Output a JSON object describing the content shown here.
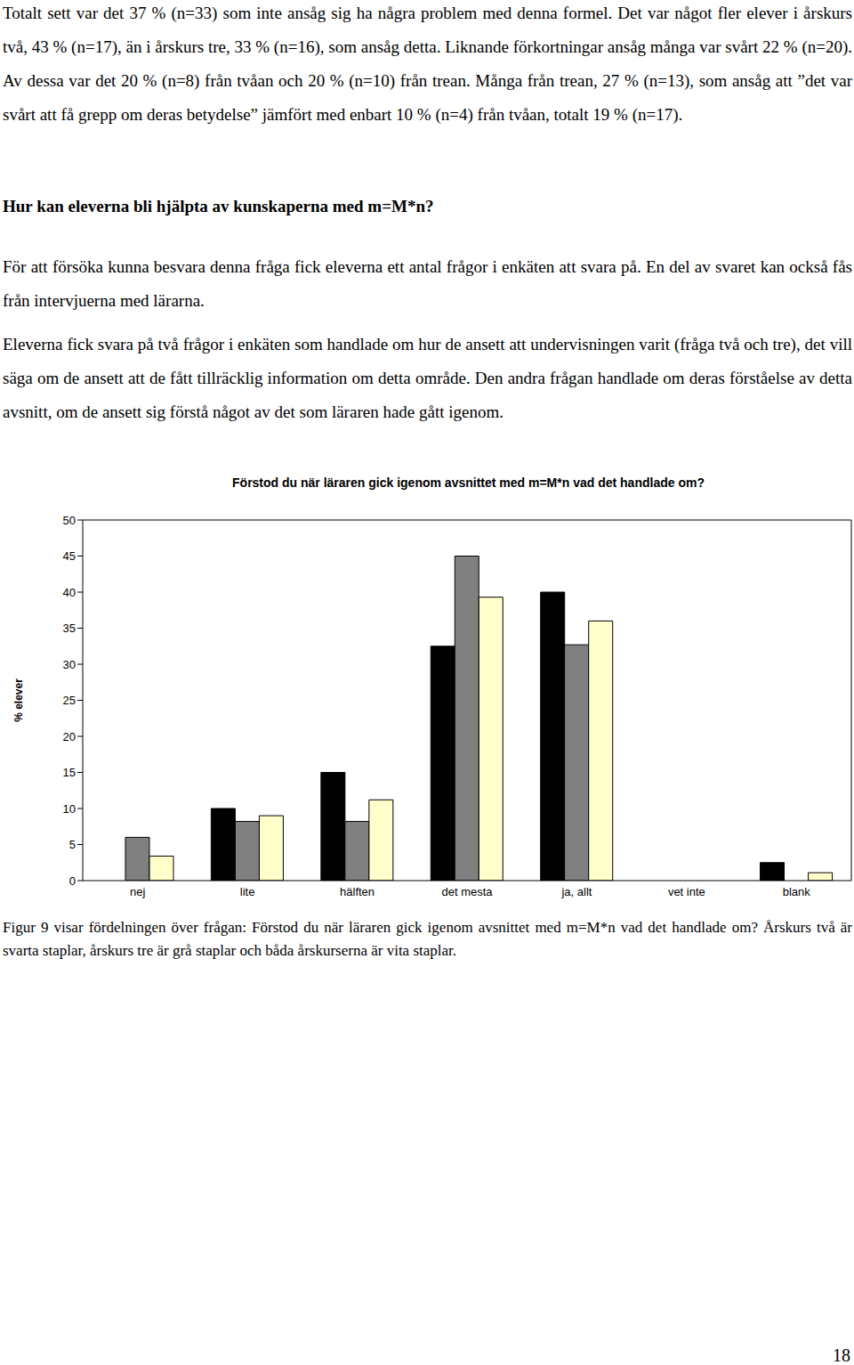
{
  "paragraphs": [
    "Totalt sett var det 37 % (n=33) som inte ansåg sig ha några problem med denna formel. Det var något fler elever i årskurs två, 43 % (n=17), än i årskurs tre, 33 % (n=16), som ansåg detta. Liknande förkortningar ansåg många var svårt 22 % (n=20). Av dessa var det 20 % (n=8) från tvåan och 20 % (n=10) från trean. Många från trean, 27 % (n=13), som ansåg att ”det var svårt att få grepp om deras betydelse” jämfört med enbart 10 % (n=4) från tvåan, totalt 19 % (n=17).",
    "För att försöka kunna besvara denna fråga fick eleverna ett antal frågor i enkäten att svara på. En del av svaret kan också fås från intervjuerna med lärarna.",
    "Eleverna fick svara på två frågor i enkäten som handlade om hur de ansett att undervisningen varit (fråga två och tre), det vill säga om de ansett att de fått tillräcklig information om detta område. Den andra frågan handlade om deras förståelse av detta avsnitt, om de ansett sig förstå något av det som läraren hade gått igenom."
  ],
  "heading": "Hur kan eleverna bli hjälpta av kunskaperna med m=M*n?",
  "chart_data": {
    "type": "bar",
    "title": "Förstod du när läraren gick igenom avsnittet med m=M*n vad det handlade om?",
    "y_label": "% elever",
    "categories": [
      "nej",
      "lite",
      "hälften",
      "det mesta",
      "ja, allt",
      "vet inte",
      "blank"
    ],
    "series": [
      {
        "color": "#000000",
        "values": [
          0,
          10,
          15,
          32.5,
          40,
          0,
          2.5
        ]
      },
      {
        "color": "#808080",
        "values": [
          6,
          8.2,
          8.2,
          45,
          32.7,
          0,
          0
        ]
      },
      {
        "color": "#FFFFCC",
        "values": [
          3.4,
          9,
          11.2,
          39.3,
          36,
          0,
          1.1
        ]
      }
    ],
    "ylim": [
      0,
      50
    ],
    "yticks": [
      0,
      5,
      10,
      15,
      20,
      25,
      30,
      35,
      40,
      45,
      50
    ],
    "grid": false
  },
  "caption": "Figur 9 visar fördelningen över frågan: Förstod du när läraren gick igenom avsnittet med m=M*n vad det handlade om? Årskurs två är svarta staplar, årskurs tre är grå staplar och båda årskurserna är vita staplar.",
  "page_number": "18"
}
